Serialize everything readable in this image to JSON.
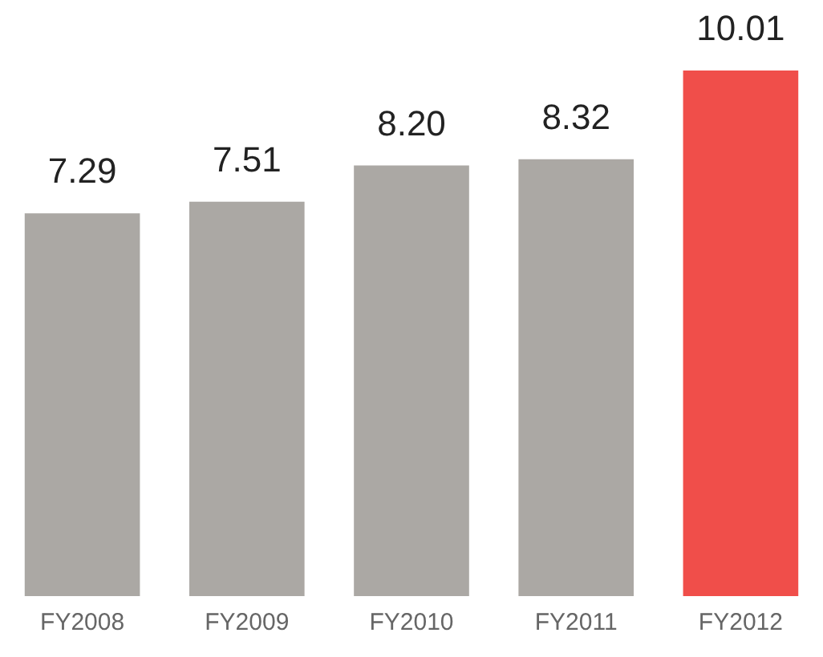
{
  "chart_data": {
    "type": "bar",
    "categories": [
      "FY2008",
      "FY2009",
      "FY2010",
      "FY2011",
      "FY2012"
    ],
    "values": [
      7.29,
      7.51,
      8.2,
      8.32,
      10.01
    ],
    "colors": [
      "#aba8a4",
      "#aba8a4",
      "#aba8a4",
      "#aba8a4",
      "#f04e4a"
    ],
    "value_labels": [
      "7.29",
      "7.51",
      "8.20",
      "8.32",
      "10.01"
    ],
    "grid": false,
    "legend": false
  }
}
